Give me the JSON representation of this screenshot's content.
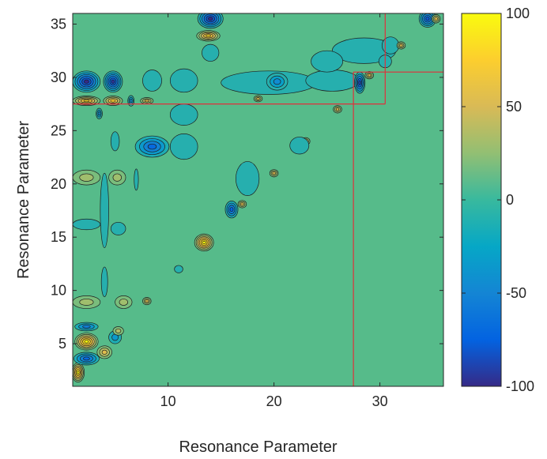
{
  "chart_data": {
    "type": "heatmap",
    "subtype": "filled-contour correlation matrix (lower-left triangle)",
    "title": "",
    "xlabel": "Resonance Parameter",
    "ylabel": "Resonance Parameter",
    "xlim": [
      1,
      36
    ],
    "ylim": [
      1,
      36
    ],
    "x_ticks": [
      10,
      20,
      30
    ],
    "y_ticks": [
      5,
      10,
      15,
      20,
      25,
      30,
      35
    ],
    "colorbar": {
      "min": -100,
      "max": 100,
      "ticks": [
        100,
        50,
        0,
        -50,
        -100
      ],
      "colormap": "parula"
    },
    "grid": false,
    "background_value": 0,
    "features": [
      {
        "x": 1.5,
        "y": 2.3,
        "value": 100,
        "rx": 0.6,
        "ry": 0.9
      },
      {
        "x": 2.3,
        "y": 5.2,
        "value": 100,
        "rx": 1.1,
        "ry": 0.8
      },
      {
        "x": 2.3,
        "y": 3.6,
        "value": -70,
        "rx": 1.2,
        "ry": 0.6
      },
      {
        "x": 4.0,
        "y": 4.2,
        "value": 55,
        "rx": 0.7,
        "ry": 0.6
      },
      {
        "x": 5.0,
        "y": 5.6,
        "value": -35,
        "rx": 0.6,
        "ry": 0.6
      },
      {
        "x": 2.3,
        "y": 6.6,
        "value": -55,
        "rx": 1.1,
        "ry": 0.4
      },
      {
        "x": 5.3,
        "y": 6.2,
        "value": 35,
        "rx": 0.5,
        "ry": 0.4
      },
      {
        "x": 2.3,
        "y": 8.9,
        "value": 30,
        "rx": 1.3,
        "ry": 0.6
      },
      {
        "x": 5.8,
        "y": 8.9,
        "value": 30,
        "rx": 0.8,
        "ry": 0.6
      },
      {
        "x": 4.0,
        "y": 10.8,
        "value": -15,
        "rx": 0.3,
        "ry": 1.4
      },
      {
        "x": 8.0,
        "y": 9.0,
        "value": 55,
        "rx": 0.4,
        "ry": 0.35
      },
      {
        "x": 11.0,
        "y": 12.0,
        "value": -15,
        "rx": 0.4,
        "ry": 0.35
      },
      {
        "x": 13.4,
        "y": 14.5,
        "value": 100,
        "rx": 0.9,
        "ry": 0.8
      },
      {
        "x": 16.0,
        "y": 17.6,
        "value": -75,
        "rx": 0.6,
        "ry": 0.8
      },
      {
        "x": 17.0,
        "y": 18.1,
        "value": 55,
        "rx": 0.4,
        "ry": 0.35
      },
      {
        "x": 17.5,
        "y": 20.5,
        "value": -15,
        "rx": 1.1,
        "ry": 1.6
      },
      {
        "x": 20.0,
        "y": 21.0,
        "value": 55,
        "rx": 0.4,
        "ry": 0.35
      },
      {
        "x": 23.0,
        "y": 24.0,
        "value": 55,
        "rx": 0.4,
        "ry": 0.35
      },
      {
        "x": 22.4,
        "y": 23.6,
        "value": -15,
        "rx": 0.9,
        "ry": 0.8
      },
      {
        "x": 26.0,
        "y": 27.0,
        "value": 55,
        "rx": 0.4,
        "ry": 0.35
      },
      {
        "x": 2.3,
        "y": 20.6,
        "value": 30,
        "rx": 1.3,
        "ry": 0.7
      },
      {
        "x": 5.2,
        "y": 20.6,
        "value": 30,
        "rx": 0.8,
        "ry": 0.7
      },
      {
        "x": 4.0,
        "y": 17.5,
        "value": -15,
        "rx": 0.4,
        "ry": 3.5
      },
      {
        "x": 2.3,
        "y": 16.2,
        "value": -15,
        "rx": 1.3,
        "ry": 0.5
      },
      {
        "x": 5.3,
        "y": 15.8,
        "value": -15,
        "rx": 0.7,
        "ry": 0.6
      },
      {
        "x": 7.0,
        "y": 20.4,
        "value": -15,
        "rx": 0.2,
        "ry": 1.0
      },
      {
        "x": 5.0,
        "y": 24.0,
        "value": -15,
        "rx": 0.4,
        "ry": 0.9
      },
      {
        "x": 8.5,
        "y": 23.5,
        "value": -70,
        "rx": 1.6,
        "ry": 1.0
      },
      {
        "x": 11.5,
        "y": 23.5,
        "value": -15,
        "rx": 1.3,
        "ry": 1.2
      },
      {
        "x": 11.5,
        "y": 26.5,
        "value": -15,
        "rx": 1.3,
        "ry": 1.0
      },
      {
        "x": 2.3,
        "y": 29.6,
        "value": -100,
        "rx": 1.3,
        "ry": 1.0
      },
      {
        "x": 4.8,
        "y": 29.6,
        "value": -95,
        "rx": 0.9,
        "ry": 1.0
      },
      {
        "x": 2.3,
        "y": 27.8,
        "value": 80,
        "rx": 1.3,
        "ry": 0.45
      },
      {
        "x": 4.8,
        "y": 27.8,
        "value": 75,
        "rx": 0.9,
        "ry": 0.45
      },
      {
        "x": 3.5,
        "y": 26.6,
        "value": -45,
        "rx": 0.3,
        "ry": 0.5
      },
      {
        "x": 8.5,
        "y": 29.7,
        "value": -15,
        "rx": 0.9,
        "ry": 1.0
      },
      {
        "x": 11.5,
        "y": 29.7,
        "value": -15,
        "rx": 1.3,
        "ry": 1.1
      },
      {
        "x": 8.0,
        "y": 27.8,
        "value": 55,
        "rx": 0.6,
        "ry": 0.3
      },
      {
        "x": 6.5,
        "y": 27.8,
        "value": -45,
        "rx": 0.3,
        "ry": 0.5
      },
      {
        "x": 19.5,
        "y": 29.5,
        "value": -15,
        "rx": 4.5,
        "ry": 1.1
      },
      {
        "x": 20.3,
        "y": 29.6,
        "value": -45,
        "rx": 1.0,
        "ry": 0.8
      },
      {
        "x": 18.5,
        "y": 28.0,
        "value": 55,
        "rx": 0.4,
        "ry": 0.3
      },
      {
        "x": 25.5,
        "y": 29.7,
        "value": -15,
        "rx": 2.5,
        "ry": 1.0
      },
      {
        "x": 28.1,
        "y": 29.5,
        "value": -90,
        "rx": 0.5,
        "ry": 1.0
      },
      {
        "x": 29.0,
        "y": 30.2,
        "value": 55,
        "rx": 0.4,
        "ry": 0.35
      },
      {
        "x": 14.0,
        "y": 35.5,
        "value": -100,
        "rx": 1.2,
        "ry": 0.9
      },
      {
        "x": 13.8,
        "y": 33.9,
        "value": 80,
        "rx": 1.1,
        "ry": 0.5
      },
      {
        "x": 14.0,
        "y": 32.3,
        "value": -15,
        "rx": 0.8,
        "ry": 0.8
      },
      {
        "x": 28.5,
        "y": 32.5,
        "value": -15,
        "rx": 3.0,
        "ry": 1.2
      },
      {
        "x": 25.0,
        "y": 31.5,
        "value": -15,
        "rx": 1.5,
        "ry": 1.0
      },
      {
        "x": 31.0,
        "y": 33.0,
        "value": -15,
        "rx": 0.8,
        "ry": 0.8
      },
      {
        "x": 32.0,
        "y": 33.0,
        "value": 55,
        "rx": 0.4,
        "ry": 0.35
      },
      {
        "x": 30.5,
        "y": 31.5,
        "value": -15,
        "rx": 0.6,
        "ry": 0.6
      },
      {
        "x": 34.5,
        "y": 35.5,
        "value": -80,
        "rx": 0.8,
        "ry": 0.8
      },
      {
        "x": 35.3,
        "y": 35.5,
        "value": 55,
        "rx": 0.4,
        "ry": 0.4
      }
    ],
    "annotations": {
      "red_lines": {
        "color": "#e0303b",
        "segments": [
          [
            [
              1,
              27.5
            ],
            [
              30.5,
              27.5
            ]
          ],
          [
            [
              30.5,
              27.5
            ],
            [
              30.5,
              36
            ]
          ],
          [
            [
              27.5,
              1
            ],
            [
              27.5,
              30.5
            ]
          ],
          [
            [
              27.5,
              30.5
            ],
            [
              36,
              30.5
            ]
          ]
        ]
      }
    }
  }
}
